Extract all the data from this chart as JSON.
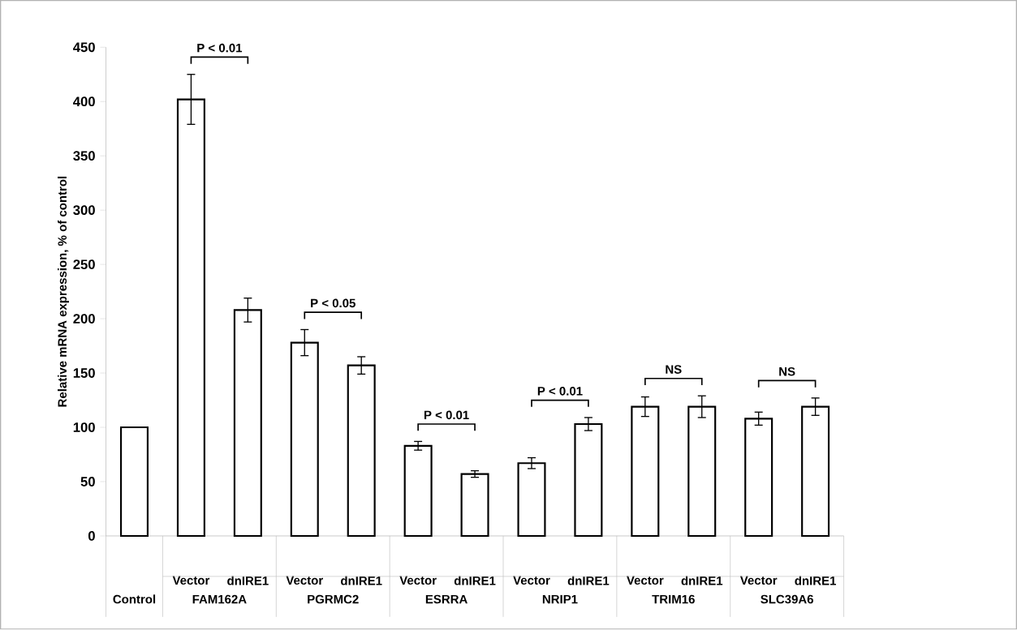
{
  "chart_data": {
    "type": "bar",
    "ylabel": "Relative mRNA expression, % of control",
    "categories": [
      null,
      "Vector",
      "dnIRE1",
      "Vector",
      "dnIRE1",
      "Vector",
      "dnIRE1",
      "Vector",
      "dnIRE1",
      "Vector",
      "dnIRE1",
      "Vector",
      "dnIRE1"
    ],
    "values": [
      100,
      402,
      208,
      178,
      157,
      83,
      57,
      67,
      103,
      119,
      119,
      108,
      119
    ],
    "errors": [
      null,
      23,
      11,
      12,
      8,
      4,
      3,
      5,
      6,
      9,
      10,
      6,
      8
    ],
    "color": "#ffffff",
    "ylim": [
      0,
      450
    ],
    "yticks": [
      0,
      50,
      100,
      150,
      200,
      250,
      300,
      350,
      400,
      450
    ],
    "grid": false,
    "annotations": [
      "Control",
      "FAM162A",
      "PGRMC2",
      "ESRRA",
      "NRIP1",
      "TRIM16",
      "SLC39A6",
      "P < 0.01",
      "P < 0.05",
      "P < 0.01",
      "P < 0.01",
      "NS",
      "NS"
    ]
  }
}
